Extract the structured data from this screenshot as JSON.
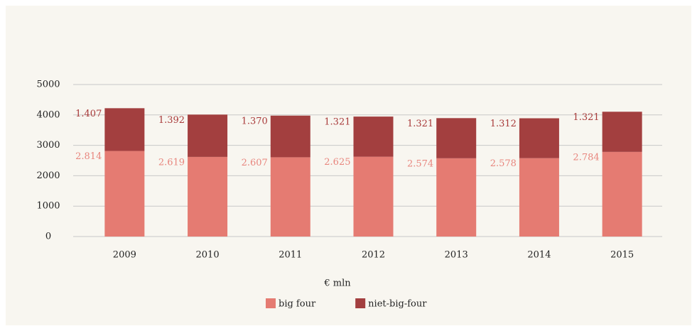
{
  "chart_data": {
    "type": "stacked_bar",
    "categories": [
      "2009",
      "2010",
      "2011",
      "2012",
      "2013",
      "2014",
      "2015"
    ],
    "series": [
      {
        "name": "big four",
        "color": "#e57b72",
        "label_color": "#e8857d",
        "values": [
          2814,
          2619,
          2607,
          2625,
          2574,
          2578,
          2784
        ],
        "value_labels": [
          "2.814",
          "2.619",
          "2.607",
          "2.625",
          "2.574",
          "2.578",
          "2.784"
        ]
      },
      {
        "name": "niet-big-four",
        "color": "#a33f3f",
        "label_color": "#a83a3a",
        "values": [
          1407,
          1392,
          1370,
          1321,
          1321,
          1312,
          1321
        ],
        "value_labels": [
          "1.407",
          "1.392",
          "1.370",
          "1.321",
          "1.321",
          "1.312",
          "1.321"
        ]
      }
    ],
    "xlabel": "€ mln",
    "ylim": [
      0,
      5000
    ],
    "yticks": [
      0,
      1000,
      2000,
      3000,
      4000,
      5000
    ],
    "grid": true,
    "legend": "bottom"
  }
}
